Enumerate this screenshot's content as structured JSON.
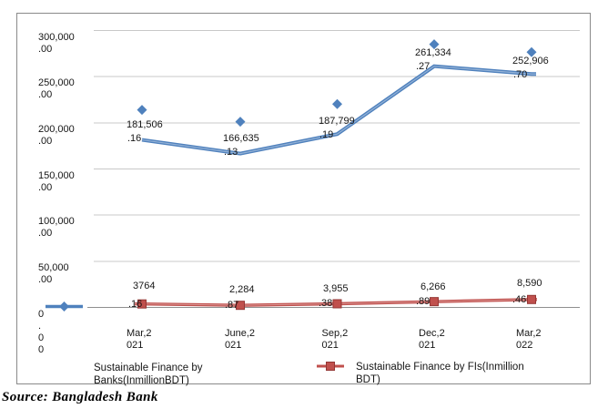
{
  "chart_data": {
    "type": "line",
    "title": "",
    "xlabel": "",
    "ylabel": "",
    "categories": [
      "Mar,2021",
      "June,2021",
      "Sep,2021",
      "Dec,2021",
      "Mar,2022"
    ],
    "series": [
      {
        "name": "Sustainable Finance by Banks(InmillionBDT)",
        "marker": "diamond",
        "color": "#4F81BD",
        "values": [
          181506.16,
          166635.13,
          187799.19,
          261334.27,
          252906.7
        ],
        "label_lines": [
          [
            "181,506",
            ".16"
          ],
          [
            "166,635",
            ".13"
          ],
          [
            "187,799",
            ".19"
          ],
          [
            "261,334",
            ".27"
          ],
          [
            "252,906",
            ".70"
          ]
        ]
      },
      {
        "name": "Sustainable Finance by FIs(Inmillion BDT)",
        "marker": "square",
        "color": "#C0504D",
        "values": [
          3764.16,
          2284.87,
          3955.38,
          6266.89,
          8590.46
        ],
        "label_lines": [
          [
            "3764",
            ".16"
          ],
          [
            "2,284",
            ".87"
          ],
          [
            "3,955",
            ".38"
          ],
          [
            "6,266",
            ".89"
          ],
          [
            "8,590",
            ".46"
          ]
        ]
      }
    ],
    "ylim": [
      0,
      300000
    ],
    "ytick_interval": 50000,
    "ytick_label_lines": [
      [
        "300,000",
        ".00"
      ],
      [
        "250,000",
        ".00"
      ],
      [
        "200,000",
        ".00"
      ],
      [
        "150,000",
        ".00"
      ],
      [
        "100,000",
        ".00"
      ],
      [
        "50,000",
        ".00"
      ],
      [
        "0",
        ".",
        "0",
        "0"
      ]
    ],
    "xtick_label_lines": [
      [
        "Mar,2",
        "021"
      ],
      [
        "June,2",
        "021"
      ],
      [
        "Sep,2",
        "021"
      ],
      [
        "Dec,2",
        "021"
      ],
      [
        "Mar,2",
        "022"
      ]
    ],
    "grid": true,
    "legend_position": "bottom"
  },
  "legend": {
    "banks_label_lines": [
      "Sustainable Finance by",
      "Banks(InmillionBDT)"
    ],
    "fis_label_lines": [
      "Sustainable Finance by FIs(Inmillion",
      "BDT)"
    ]
  },
  "source": "Source: Bangladesh Bank",
  "colors": {
    "banks_series": "#4F81BD",
    "banks_highlight": "#95B3D7",
    "fis_series": "#C0504D",
    "fis_marker_border": "#943634",
    "fis_highlight": "#D99694",
    "gridline": "#C8C8C8",
    "axis_line": "#8F8F8F",
    "chart_border": "#8A8A8A",
    "text": "#161616"
  }
}
